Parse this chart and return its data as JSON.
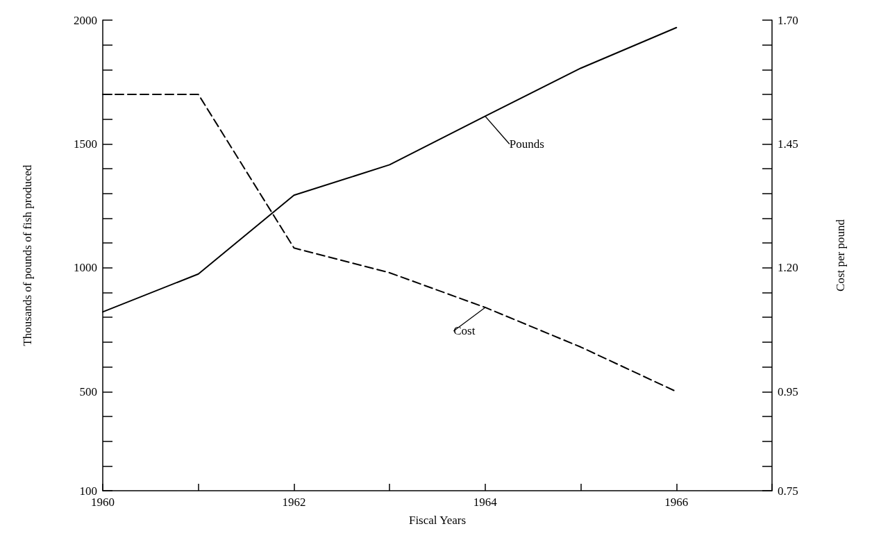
{
  "chart_data": {
    "type": "line",
    "xlabel": "Fiscal Years",
    "ylabel": "Thousands of pounds of fish produced",
    "y2label": "Cost per pound",
    "x": [
      1960,
      1961,
      1962,
      1963,
      1964,
      1965,
      1966
    ],
    "series": [
      {
        "name": "Pounds",
        "color": "#000000",
        "line_style": "solid",
        "values": [
          822,
          975,
          1293,
          1416,
          1612,
          1806,
          1970
        ]
      },
      {
        "name": "Cost",
        "color": "#000000",
        "line_style": "dashed",
        "axis": "y2",
        "values": [
          1.55,
          1.55,
          1.24,
          1.19,
          1.12,
          1.04,
          0.95
        ]
      }
    ],
    "xlim": [
      1960,
      1967
    ],
    "xticks": [
      1960,
      {
        "value": 1961,
        "label": null
      },
      1962,
      {
        "value": 1963,
        "label": null
      },
      1964,
      {
        "value": 1965,
        "label": null
      },
      1966,
      {
        "value": 1967,
        "label": null
      }
    ],
    "ylim": [
      100,
      2000
    ],
    "yticks": [
      100,
      {
        "value": 200,
        "label": null
      },
      {
        "value": 300,
        "label": null
      },
      {
        "value": 400,
        "label": null
      },
      500,
      {
        "value": 600,
        "label": null
      },
      {
        "value": 700,
        "label": null
      },
      {
        "value": 800,
        "label": null
      },
      {
        "value": 900,
        "label": null
      },
      1000,
      {
        "value": 1100,
        "label": null
      },
      {
        "value": 1200,
        "label": null
      },
      {
        "value": 1300,
        "label": null
      },
      {
        "value": 1400,
        "label": null
      },
      1500,
      {
        "value": 1600,
        "label": null
      },
      {
        "value": 1700,
        "label": null
      },
      {
        "value": 1800,
        "label": null
      },
      {
        "value": 1900,
        "label": null
      },
      2000
    ],
    "y2lim": [
      0.75,
      1.7
    ],
    "y2ticks": [
      {
        "value": 0.75,
        "label": "0.75"
      },
      {
        "value": 0.8,
        "label": null
      },
      {
        "value": 0.85,
        "label": null
      },
      {
        "value": 0.9,
        "label": null
      },
      {
        "value": 0.95,
        "label": "0.95"
      },
      {
        "value": 1.0,
        "label": null
      },
      {
        "value": 1.05,
        "label": null
      },
      {
        "value": 1.1,
        "label": null
      },
      {
        "value": 1.15,
        "label": null
      },
      {
        "value": 1.2,
        "label": "1.20"
      },
      {
        "value": 1.25,
        "label": null
      },
      {
        "value": 1.3,
        "label": null
      },
      {
        "value": 1.35,
        "label": null
      },
      {
        "value": 1.4,
        "label": null
      },
      {
        "value": 1.45,
        "label": "1.45"
      },
      {
        "value": 1.5,
        "label": null
      },
      {
        "value": 1.55,
        "label": null
      },
      {
        "value": 1.6,
        "label": null
      },
      {
        "value": 1.65,
        "label": null
      },
      {
        "value": 1.7,
        "label": "1.70"
      }
    ],
    "grid": false,
    "legend": false,
    "marker": "none"
  }
}
